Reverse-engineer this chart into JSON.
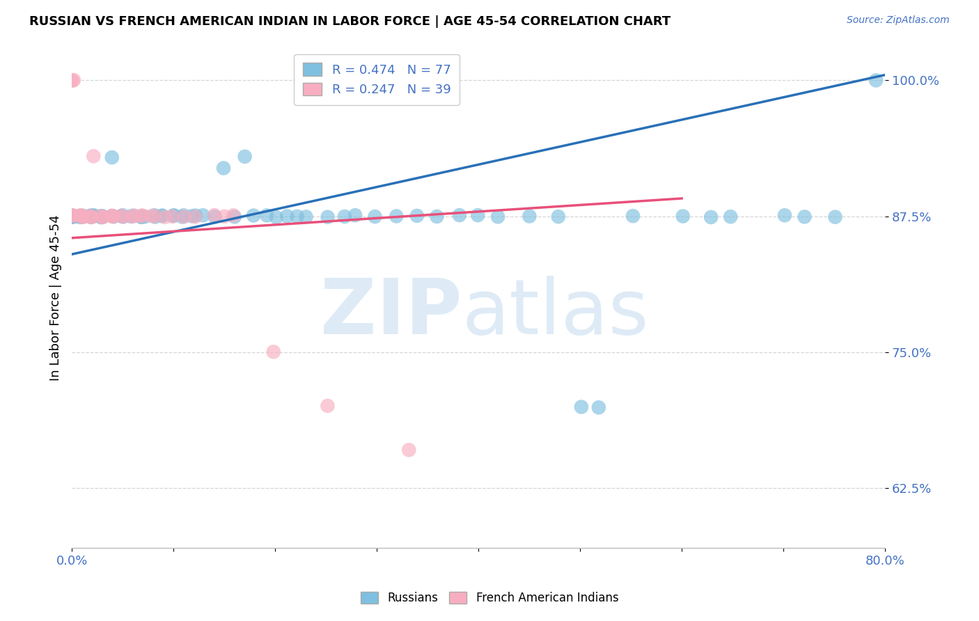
{
  "title": "RUSSIAN VS FRENCH AMERICAN INDIAN IN LABOR FORCE | AGE 45-54 CORRELATION CHART",
  "source": "Source: ZipAtlas.com",
  "ylabel": "In Labor Force | Age 45-54",
  "xlim": [
    0.0,
    0.8
  ],
  "ylim": [
    0.57,
    1.03
  ],
  "y_ticks": [
    0.625,
    0.75,
    0.875,
    1.0
  ],
  "y_tick_labels": [
    "62.5%",
    "75.0%",
    "87.5%",
    "100.0%"
  ],
  "russian_R": 0.474,
  "russian_N": 77,
  "french_R": 0.247,
  "french_N": 39,
  "russian_color": "#7fbfdf",
  "french_color": "#f8aec0",
  "russian_line_color": "#2970b8",
  "french_line_color": "#e8507a",
  "ru_x": [
    0.0,
    0.0,
    0.0,
    0.0,
    0.0,
    0.01,
    0.01,
    0.01,
    0.01,
    0.01,
    0.01,
    0.02,
    0.02,
    0.02,
    0.02,
    0.02,
    0.02,
    0.02,
    0.03,
    0.03,
    0.03,
    0.03,
    0.03,
    0.04,
    0.04,
    0.04,
    0.05,
    0.05,
    0.05,
    0.06,
    0.06,
    0.07,
    0.07,
    0.07,
    0.08,
    0.08,
    0.09,
    0.09,
    0.1,
    0.1,
    0.11,
    0.11,
    0.12,
    0.12,
    0.13,
    0.14,
    0.15,
    0.16,
    0.17,
    0.18,
    0.19,
    0.2,
    0.21,
    0.22,
    0.23,
    0.25,
    0.27,
    0.28,
    0.3,
    0.32,
    0.34,
    0.36,
    0.38,
    0.4,
    0.42,
    0.45,
    0.48,
    0.5,
    0.52,
    0.55,
    0.6,
    0.63,
    0.65,
    0.7,
    0.72,
    0.75,
    0.79
  ],
  "ru_y": [
    0.875,
    0.875,
    0.875,
    0.875,
    0.875,
    0.875,
    0.875,
    0.875,
    0.875,
    0.875,
    0.875,
    0.875,
    0.875,
    0.875,
    0.875,
    0.875,
    0.875,
    0.875,
    0.875,
    0.875,
    0.875,
    0.875,
    0.875,
    0.93,
    0.875,
    0.875,
    0.875,
    0.875,
    0.875,
    0.875,
    0.875,
    0.875,
    0.875,
    0.875,
    0.875,
    0.875,
    0.875,
    0.875,
    0.875,
    0.875,
    0.875,
    0.875,
    0.875,
    0.875,
    0.875,
    0.875,
    0.92,
    0.875,
    0.93,
    0.875,
    0.875,
    0.875,
    0.875,
    0.875,
    0.875,
    0.875,
    0.875,
    0.875,
    0.875,
    0.875,
    0.875,
    0.875,
    0.875,
    0.875,
    0.875,
    0.875,
    0.875,
    0.7,
    0.7,
    0.875,
    0.875,
    0.875,
    0.875,
    0.875,
    0.875,
    0.875,
    1.0
  ],
  "fr_x": [
    0.0,
    0.0,
    0.0,
    0.0,
    0.0,
    0.0,
    0.01,
    0.01,
    0.01,
    0.01,
    0.01,
    0.02,
    0.02,
    0.02,
    0.02,
    0.03,
    0.03,
    0.03,
    0.04,
    0.04,
    0.04,
    0.05,
    0.05,
    0.06,
    0.06,
    0.07,
    0.07,
    0.08,
    0.08,
    0.09,
    0.1,
    0.11,
    0.12,
    0.14,
    0.15,
    0.16,
    0.2,
    0.25,
    0.33
  ],
  "fr_y": [
    1.0,
    1.0,
    1.0,
    0.875,
    0.875,
    0.875,
    0.875,
    0.875,
    0.875,
    0.875,
    0.875,
    0.93,
    0.875,
    0.875,
    0.875,
    0.875,
    0.875,
    0.875,
    0.875,
    0.875,
    0.875,
    0.875,
    0.875,
    0.875,
    0.875,
    0.875,
    0.875,
    0.875,
    0.875,
    0.875,
    0.875,
    0.875,
    0.875,
    0.875,
    0.875,
    0.875,
    0.75,
    0.7,
    0.66
  ],
  "ru_line_x0": 0.0,
  "ru_line_y0": 0.84,
  "ru_line_x1": 0.8,
  "ru_line_y1": 1.005,
  "fr_line_x0": 0.0,
  "fr_line_y0": 0.855,
  "fr_line_x1": 0.33,
  "fr_line_y1": 0.875
}
